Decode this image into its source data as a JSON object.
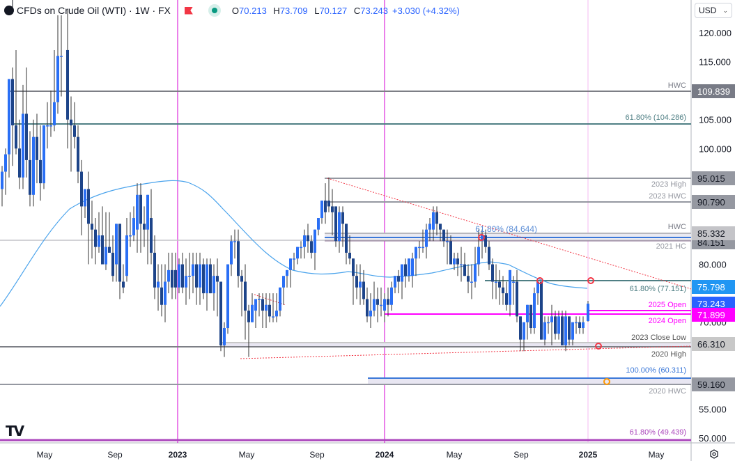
{
  "header": {
    "symbol_title": "CFDs on Crude Oil (WTI) · 1W · FX",
    "ohlc": {
      "open_label": "O",
      "open": "70.213",
      "high_label": "H",
      "high": "73.709",
      "low_label": "L",
      "low": "70.127",
      "close_label": "C",
      "close": "73.243"
    },
    "change": "+3.030 (+4.32%)",
    "currency": "USD"
  },
  "colors": {
    "bull": "#2a6ff5",
    "bear": "#1d4489",
    "wick": "#333333",
    "ma": "#4aa3ec",
    "year_divider": "#d400d4",
    "open_lines": "#ff00ff",
    "trend": "#f23645",
    "grey_level": "#7d7f86",
    "fib_teal": "#4f7f84",
    "fib_blue": "#3b78d8",
    "fib_purple": "#ab47bc",
    "zone_fill": "#e8e6f2"
  },
  "y_axis": {
    "ticks": [
      "120.000",
      "115.000",
      "105.000",
      "100.000",
      "80.000",
      "70.000",
      "60.000",
      "55.000",
      "50.000"
    ],
    "price_tags": [
      {
        "value": "109.839",
        "bg": "#787b86",
        "color": "#ffffff"
      },
      {
        "value": "95.015",
        "bg": "#9598a1",
        "color": "#131722"
      },
      {
        "value": "90.790",
        "bg": "#9598a1",
        "color": "#131722"
      },
      {
        "value": "85.332",
        "bg": "#c4c4c8",
        "color": "#131722"
      },
      {
        "value": "84.151",
        "bg": "#9598a1",
        "color": "#131722"
      },
      {
        "value": "75.798",
        "bg": "#2196f3",
        "color": "#ffffff"
      },
      {
        "value": "73.243",
        "bg": "#2962ff",
        "color": "#ffffff"
      },
      {
        "value": "71.899",
        "bg": "#ff00ff",
        "color": "#ffffff"
      },
      {
        "value": "66.310",
        "bg": "#c8c8c8",
        "color": "#131722"
      },
      {
        "value": "59.160",
        "bg": "#9598a1",
        "color": "#131722"
      }
    ]
  },
  "x_axis": {
    "ticks": [
      {
        "label": "May",
        "bold": false
      },
      {
        "label": "Sep",
        "bold": false
      },
      {
        "label": "2023",
        "bold": true
      },
      {
        "label": "May",
        "bold": false
      },
      {
        "label": "Sep",
        "bold": false
      },
      {
        "label": "2024",
        "bold": true
      },
      {
        "label": "May",
        "bold": false
      },
      {
        "label": "Sep",
        "bold": false
      },
      {
        "label": "2025",
        "bold": true
      },
      {
        "label": "May",
        "bold": false
      }
    ]
  },
  "chart_data": {
    "type": "candlestick",
    "title": "CFDs on Crude Oil (WTI) · 1W · FX",
    "xlabel": "",
    "ylabel": "USD",
    "ylim": [
      49,
      124
    ],
    "x_range": [
      "2022-03",
      "2025-06"
    ],
    "grid": false,
    "moving_average": "approx 52-week SMA (light blue)",
    "levels": [
      {
        "label": "HWC",
        "value": 109.839
      },
      {
        "label": "61.80% (104.286)",
        "value": 104.286
      },
      {
        "label": "2023 High",
        "value": 95.015
      },
      {
        "label": "2023 HWC",
        "value": 90.79
      },
      {
        "label": "HWC",
        "value": 85.332
      },
      {
        "label": "61.80% (84.644)",
        "value": 84.644
      },
      {
        "label": "2021 HC",
        "value": 84.151
      },
      {
        "label": "61.80% (77.151)",
        "value": 77.151
      },
      {
        "label": "2025 Open",
        "value": 71.899
      },
      {
        "label": "2024 Open",
        "value": 71.65
      },
      {
        "label": "2023 Close Low",
        "value": 66.31
      },
      {
        "label": "2020 High",
        "value": 65.65
      },
      {
        "label": "100.00% (60.311)",
        "value": 60.311
      },
      {
        "label": "2020 HWC",
        "value": 59.16
      },
      {
        "label": "61.80% (49.439)",
        "value": 49.439
      }
    ],
    "annotations": [
      "Descending trendline from 2023 high",
      "Ascending trendline from 2023 low",
      "Red circle markers at trendline touches"
    ],
    "last_candle": {
      "open": 70.213,
      "high": 73.709,
      "low": 70.127,
      "close": 73.243
    }
  },
  "labels": {
    "hwc_top": "HWC",
    "fib_104": "61.80% (104.286)",
    "h2023": "2023 High",
    "hwc2023": "2023 HWC",
    "hwc85": "HWC",
    "hc2021": "2021 HC",
    "fib_84": "61.80% (84.644)",
    "fib_77": "61.80% (77.151)",
    "open2025": "2025 Open",
    "open2024": "2024 Open",
    "close_low_2023": "2023 Close Low",
    "high2020": "2020 High",
    "fib_60": "100.00% (60.311)",
    "hwc2020": "2020 HWC",
    "fib_49": "61.80% (49.439)"
  },
  "branding": {
    "logo": "TV"
  }
}
